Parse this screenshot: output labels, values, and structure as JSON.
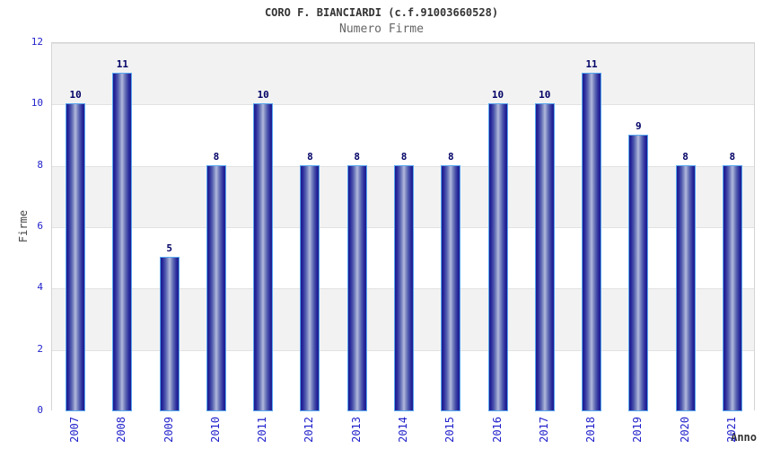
{
  "header": {
    "title": "CORO F. BIANCIARDI (c.f.91003660528)",
    "subtitle": "Numero Firme"
  },
  "chart_data": {
    "type": "bar",
    "title": "CORO F. BIANCIARDI (c.f.91003660528)",
    "subtitle": "Numero Firme",
    "xlabel": "Anno",
    "ylabel": "Firme",
    "categories": [
      "2007",
      "2008",
      "2009",
      "2010",
      "2011",
      "2012",
      "2013",
      "2014",
      "2015",
      "2016",
      "2017",
      "2018",
      "2019",
      "2020",
      "2021"
    ],
    "values": [
      10,
      11,
      5,
      8,
      10,
      8,
      8,
      8,
      8,
      10,
      10,
      11,
      9,
      8,
      8
    ],
    "ylim": [
      0,
      12
    ],
    "yticks": [
      0,
      2,
      4,
      6,
      8,
      10,
      12
    ],
    "grid": "horizontal-bands-alternating",
    "legend": "none",
    "data_labels": "above-bars",
    "colors": {
      "tick_label": "#2222cc",
      "data_label": "#000066",
      "title": "#333333",
      "subtitle": "#666666",
      "axis_title": "#444444",
      "band_gray": "#f2f2f2",
      "band_white": "#ffffff",
      "plot_border": "#d4d4d4",
      "bar_border": "#58a8f0",
      "bar_edge": "#1d1d8f",
      "bar_center": "#b3bade"
    }
  }
}
